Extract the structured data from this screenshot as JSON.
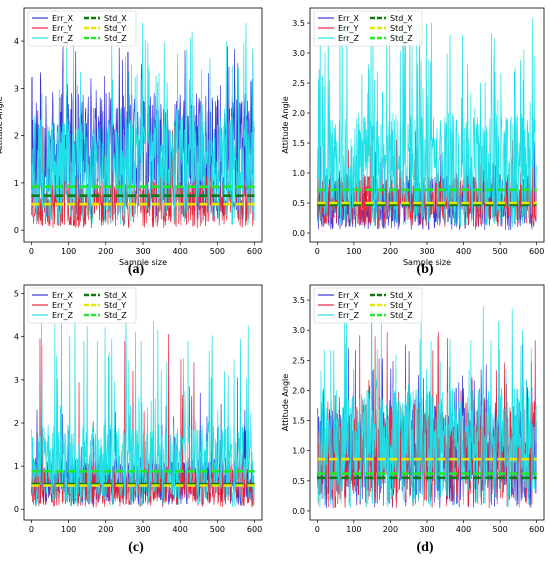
{
  "colors": {
    "err_x": "#3a35d6",
    "err_y": "#e8243b",
    "err_z": "#1fe0e6",
    "std_x": "#0f7a10",
    "std_y": "#e6e600",
    "std_z": "#22e82a"
  },
  "captions": {
    "a": "(a)",
    "b": "(b)",
    "c": "(c)",
    "d": "(d)"
  },
  "chart_data": [
    {
      "type": "line",
      "panel": "a",
      "xlabel": "Sample size",
      "ylabel": "Attitude Angle",
      "xlim": [
        -20,
        620
      ],
      "ylim": [
        -0.25,
        4.7
      ],
      "xticks": [
        0,
        100,
        200,
        300,
        400,
        500,
        600
      ],
      "yticks": [
        0,
        1,
        2,
        3,
        4
      ],
      "legend_position": "top-left",
      "legend": [
        "Err_X",
        "Err_Y",
        "Err_Z",
        "Std_X",
        "Std_Y",
        "Std_Z"
      ],
      "n_samples": 600,
      "series": [
        {
          "name": "Err_X",
          "kind": "noise",
          "mean": 1.55,
          "amp": 1.35,
          "spikes": 0.1,
          "spike_max": 3.9,
          "seed": 11
        },
        {
          "name": "Err_Y",
          "kind": "noise",
          "mean": 0.6,
          "amp": 0.55,
          "spikes": 0.03,
          "spike_max": 2.3,
          "seed": 23
        },
        {
          "name": "Err_Z",
          "kind": "noise",
          "mean": 1.25,
          "amp": 1.15,
          "spikes": 0.13,
          "spike_max": 4.4,
          "seed": 37
        },
        {
          "name": "Std_X",
          "kind": "hline",
          "y": 0.73
        },
        {
          "name": "Std_Y",
          "kind": "hline",
          "y": 0.55
        },
        {
          "name": "Std_Z",
          "kind": "hline",
          "y": 0.92
        }
      ]
    },
    {
      "type": "line",
      "panel": "b",
      "xlabel": "Sample size",
      "ylabel": "Attitude Angle",
      "xlim": [
        -20,
        620
      ],
      "ylim": [
        -0.15,
        3.75
      ],
      "xticks": [
        0,
        100,
        200,
        300,
        400,
        500,
        600
      ],
      "yticks": [
        0.0,
        0.5,
        1.0,
        1.5,
        2.0,
        2.5,
        3.0,
        3.5
      ],
      "legend_position": "top-left",
      "legend": [
        "Err_X",
        "Err_Y",
        "Err_Z",
        "Std_X",
        "Std_Y",
        "Std_Z"
      ],
      "n_samples": 600,
      "series": [
        {
          "name": "Err_X",
          "kind": "noise",
          "mean": 0.5,
          "amp": 0.45,
          "spikes": 0.05,
          "spike_max": 1.6,
          "seed": 41
        },
        {
          "name": "Err_Y",
          "kind": "noise",
          "mean": 0.55,
          "amp": 0.45,
          "spikes": 0.06,
          "spike_max": 1.7,
          "seed": 53
        },
        {
          "name": "Err_Z",
          "kind": "noise",
          "mean": 1.05,
          "amp": 0.95,
          "spikes": 0.14,
          "spike_max": 3.6,
          "seed": 67
        },
        {
          "name": "Std_X",
          "kind": "hline",
          "y": 0.47
        },
        {
          "name": "Std_Y",
          "kind": "hline",
          "y": 0.5
        },
        {
          "name": "Std_Z",
          "kind": "hline",
          "y": 0.72
        }
      ]
    },
    {
      "type": "line",
      "panel": "c",
      "xlabel": "",
      "ylabel": "",
      "xlim": [
        -20,
        620
      ],
      "ylim": [
        -0.25,
        5.2
      ],
      "xticks": [
        0,
        100,
        200,
        300,
        400,
        500,
        600
      ],
      "yticks": [
        0,
        1,
        2,
        3,
        4,
        5
      ],
      "legend_position": "top-left",
      "legend": [
        "Err_X",
        "Err_Y",
        "Err_Z",
        "Std_X",
        "Std_Y",
        "Std_Z"
      ],
      "n_samples": 600,
      "series": [
        {
          "name": "Err_X",
          "kind": "noise",
          "mean": 0.65,
          "amp": 0.55,
          "spikes": 0.06,
          "spike_max": 2.8,
          "seed": 71
        },
        {
          "name": "Err_Y",
          "kind": "noise",
          "mean": 0.55,
          "amp": 0.5,
          "spikes": 0.04,
          "spike_max": 4.3,
          "seed": 83
        },
        {
          "name": "Err_Z",
          "kind": "noise",
          "mean": 1.0,
          "amp": 0.95,
          "spikes": 0.12,
          "spike_max": 4.6,
          "seed": 97
        },
        {
          "name": "Std_X",
          "kind": "hline",
          "y": 0.58
        },
        {
          "name": "Std_Y",
          "kind": "hline",
          "y": 0.55
        },
        {
          "name": "Std_Z",
          "kind": "hline",
          "y": 0.88
        }
      ]
    },
    {
      "type": "line",
      "panel": "d",
      "xlabel": "",
      "ylabel": "Attitude Angle",
      "xlim": [
        -20,
        620
      ],
      "ylim": [
        -0.15,
        3.75
      ],
      "xticks": [
        0,
        100,
        200,
        300,
        400,
        500,
        600
      ],
      "yticks": [
        0.0,
        0.5,
        1.0,
        1.5,
        2.0,
        2.5,
        3.0,
        3.5
      ],
      "legend_position": "top-left",
      "legend": [
        "Err_X",
        "Err_Y",
        "Err_Z",
        "Std_X",
        "Std_Y",
        "Std_Z"
      ],
      "n_samples": 600,
      "series": [
        {
          "name": "Err_X",
          "kind": "noise",
          "mean": 0.9,
          "amp": 0.85,
          "spikes": 0.07,
          "spike_max": 2.9,
          "seed": 101
        },
        {
          "name": "Err_Y",
          "kind": "noise",
          "mean": 0.95,
          "amp": 0.9,
          "spikes": 0.09,
          "spike_max": 3.1,
          "seed": 113
        },
        {
          "name": "Err_Z",
          "kind": "noise",
          "mean": 1.05,
          "amp": 1.0,
          "spikes": 0.12,
          "spike_max": 3.5,
          "seed": 127
        },
        {
          "name": "Std_X",
          "kind": "hline",
          "y": 0.55
        },
        {
          "name": "Std_Y",
          "kind": "hline",
          "y": 0.86
        },
        {
          "name": "Std_Z",
          "kind": "hline",
          "y": 0.62
        }
      ]
    }
  ]
}
